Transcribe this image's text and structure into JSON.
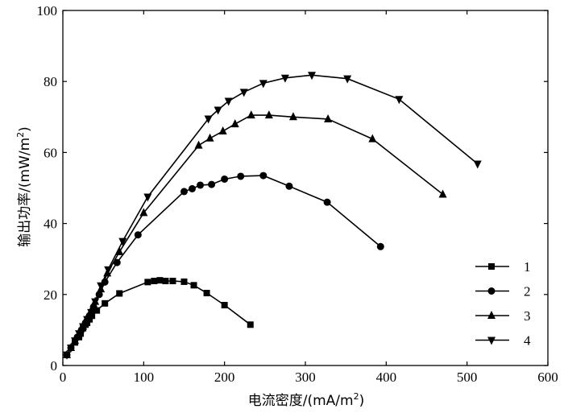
{
  "chart_data": {
    "type": "line",
    "xlabel": "电流密度/(mA/m",
    "xlabel_sup": "2",
    "xlabel_end": ")",
    "ylabel": "输出功率/(mW/m",
    "ylabel_sup": "2",
    "ylabel_end": ")",
    "xlim": [
      0,
      600
    ],
    "ylim": [
      0,
      100
    ],
    "xticks": [
      0,
      100,
      200,
      300,
      400,
      500,
      600
    ],
    "yticks": [
      0,
      20,
      40,
      60,
      80,
      100
    ],
    "legend_position": "bottom-right",
    "series": [
      {
        "name": "1",
        "marker": "square",
        "points": [
          [
            5,
            3
          ],
          [
            10,
            5
          ],
          [
            15,
            6.5
          ],
          [
            20,
            8
          ],
          [
            22,
            9
          ],
          [
            25,
            10.5
          ],
          [
            28,
            11.5
          ],
          [
            30,
            12
          ],
          [
            33,
            13
          ],
          [
            36,
            14
          ],
          [
            42,
            15.5
          ],
          [
            52,
            17.5
          ],
          [
            70,
            20.3
          ],
          [
            105,
            23.5
          ],
          [
            113,
            23.8
          ],
          [
            120,
            24
          ],
          [
            127,
            23.8
          ],
          [
            136,
            23.8
          ],
          [
            150,
            23.6
          ],
          [
            162,
            22.6
          ],
          [
            178,
            20.4
          ],
          [
            200,
            17
          ],
          [
            232,
            11.5
          ]
        ]
      },
      {
        "name": "2",
        "marker": "circle",
        "points": [
          [
            5,
            3
          ],
          [
            10,
            5
          ],
          [
            18,
            8
          ],
          [
            23,
            10
          ],
          [
            28,
            12
          ],
          [
            33,
            14
          ],
          [
            38,
            16.5
          ],
          [
            45,
            20
          ],
          [
            52,
            23.5
          ],
          [
            67,
            29
          ],
          [
            93,
            36.8
          ],
          [
            150,
            49
          ],
          [
            160,
            49.8
          ],
          [
            170,
            50.8
          ],
          [
            184,
            51
          ],
          [
            200,
            52.5
          ],
          [
            220,
            53.3
          ],
          [
            248,
            53.5
          ],
          [
            280,
            50.5
          ],
          [
            327,
            46
          ],
          [
            393,
            33.5
          ]
        ]
      },
      {
        "name": "3",
        "marker": "triangle-up",
        "points": [
          [
            5,
            3
          ],
          [
            10,
            5
          ],
          [
            15,
            7
          ],
          [
            20,
            9
          ],
          [
            25,
            11
          ],
          [
            30,
            13.5
          ],
          [
            35,
            15.5
          ],
          [
            40,
            18
          ],
          [
            47,
            21.5
          ],
          [
            55,
            26
          ],
          [
            70,
            32
          ],
          [
            100,
            43
          ],
          [
            168,
            62
          ],
          [
            182,
            64
          ],
          [
            198,
            66
          ],
          [
            213,
            68
          ],
          [
            233,
            70.5
          ],
          [
            255,
            70.5
          ],
          [
            285,
            70
          ],
          [
            328,
            69.4
          ],
          [
            383,
            63.8
          ],
          [
            470,
            48.2
          ]
        ]
      },
      {
        "name": "4",
        "marker": "triangle-down",
        "points": [
          [
            5,
            3
          ],
          [
            10,
            5
          ],
          [
            15,
            7
          ],
          [
            20,
            9
          ],
          [
            25,
            11
          ],
          [
            30,
            13
          ],
          [
            35,
            15
          ],
          [
            40,
            18
          ],
          [
            47,
            22.5
          ],
          [
            56,
            27
          ],
          [
            74,
            35
          ],
          [
            105,
            47.5
          ],
          [
            180,
            69.5
          ],
          [
            192,
            72
          ],
          [
            205,
            74.5
          ],
          [
            224,
            77
          ],
          [
            248,
            79.5
          ],
          [
            275,
            81
          ],
          [
            308,
            81.8
          ],
          [
            352,
            80.8
          ],
          [
            416,
            75
          ],
          [
            513,
            56.8
          ]
        ]
      }
    ]
  }
}
